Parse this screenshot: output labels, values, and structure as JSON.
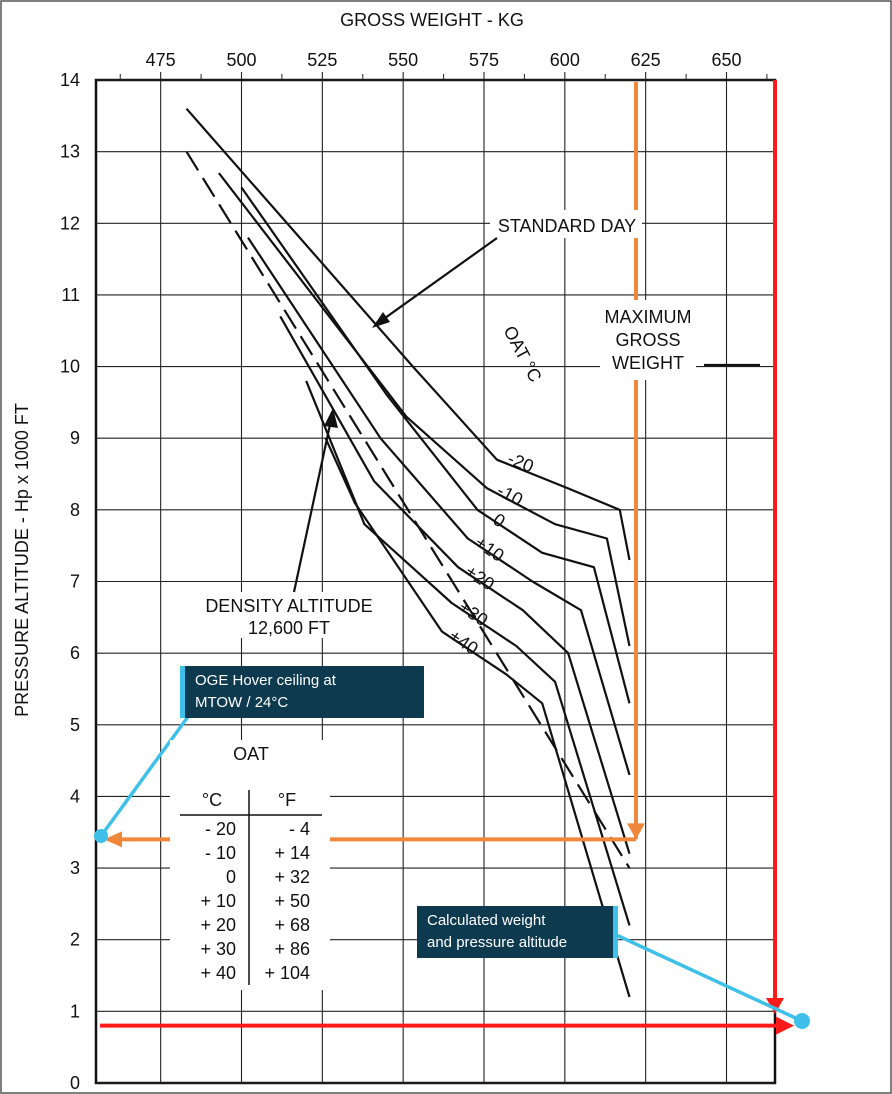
{
  "chart_data": {
    "type": "line",
    "title": "",
    "xlabel": "GROSS WEIGHT - KG",
    "ylabel": "PRESSURE ALTITUDE - Hp x 1000 FT",
    "xlim": [
      455,
      665
    ],
    "ylim": [
      0,
      14
    ],
    "x_ticks": [
      "475",
      "500",
      "525",
      "550",
      "575",
      "600",
      "625",
      "650"
    ],
    "y_ticks": [
      "0",
      "1",
      "2",
      "3",
      "4",
      "5",
      "6",
      "7",
      "8",
      "9",
      "10",
      "11",
      "12",
      "13",
      "14"
    ],
    "grid": true,
    "series": [
      {
        "name": "-20",
        "label": "-20",
        "points": [
          [
            483,
            13.6
          ],
          [
            553,
            10.0
          ],
          [
            579,
            8.7
          ],
          [
            601,
            8.3
          ],
          [
            617,
            8.0
          ],
          [
            620,
            7.3
          ]
        ]
      },
      {
        "name": "-10",
        "label": "-10",
        "points": [
          [
            493,
            12.7
          ],
          [
            551,
            9.3
          ],
          [
            576,
            8.3
          ],
          [
            597,
            7.8
          ],
          [
            613,
            7.6
          ],
          [
            620,
            6.1
          ]
        ]
      },
      {
        "name": "0",
        "label": "0",
        "points": [
          [
            500,
            12.5
          ],
          [
            545,
            9.6
          ],
          [
            573,
            8.0
          ],
          [
            593,
            7.4
          ],
          [
            609,
            7.2
          ],
          [
            620,
            5.3
          ]
        ]
      },
      {
        "name": "+10",
        "label": "+10",
        "points": [
          [
            502,
            11.8
          ],
          [
            543,
            9.0
          ],
          [
            570,
            7.6
          ],
          [
            590,
            7.0
          ],
          [
            605,
            6.6
          ],
          [
            620,
            4.3
          ]
        ]
      },
      {
        "name": "+20",
        "label": "+20",
        "points": [
          [
            512,
            10.7
          ],
          [
            541,
            8.4
          ],
          [
            567,
            7.2
          ],
          [
            587,
            6.6
          ],
          [
            601,
            6.0
          ],
          [
            620,
            3.2
          ]
        ]
      },
      {
        "name": "+30",
        "label": "+30",
        "points": [
          [
            520,
            9.8
          ],
          [
            538,
            7.8
          ],
          [
            565,
            6.7
          ],
          [
            585,
            6.1
          ],
          [
            597,
            5.6
          ],
          [
            620,
            2.2
          ]
        ]
      },
      {
        "name": "+40",
        "label": "+40",
        "points": [
          [
            526,
            9.0
          ],
          [
            535,
            8.1
          ],
          [
            562,
            6.3
          ],
          [
            582,
            5.7
          ],
          [
            593,
            5.3
          ],
          [
            620,
            1.2
          ]
        ]
      }
    ],
    "standard_day": {
      "label": "STANDARD DAY",
      "points": [
        [
          483,
          13.0
        ],
        [
          620,
          3.0
        ]
      ]
    },
    "legend_title": "OAT °C",
    "annotations": {
      "standard_day": "STANDARD DAY",
      "max_gross_weight": [
        "MAXIMUM",
        "GROSS",
        "WEIGHT"
      ],
      "density_altitude": [
        "DENSITY ALTITUDE",
        "12,600 FT"
      ]
    },
    "oat_table": {
      "title": "OAT",
      "headers": [
        "°C",
        "°F"
      ],
      "rows": [
        [
          "- 20",
          "- 4"
        ],
        [
          "- 10",
          "+ 14"
        ],
        [
          "0",
          "+ 32"
        ],
        [
          "+ 10",
          "+ 50"
        ],
        [
          "+ 20",
          "+ 68"
        ],
        [
          "+ 30",
          "+ 86"
        ],
        [
          "+ 40",
          "+ 104"
        ]
      ]
    },
    "overlays": {
      "max_gross_weight_kg": 622,
      "ogw_hover_ceiling_hp": 3.4,
      "calculated_weight_kg": 665,
      "calculated_hp": 0.8,
      "orange_color": "#f0883c",
      "red_color": "#ff1a1a",
      "callout_color": "#0e3a50",
      "callout_accent": "#3fc0e8"
    },
    "callouts": {
      "ogw": [
        "OGE Hover ceiling at",
        "MTOW / 24°C"
      ],
      "calc": [
        "Calculated weight",
        "and pressure altitude"
      ]
    }
  }
}
